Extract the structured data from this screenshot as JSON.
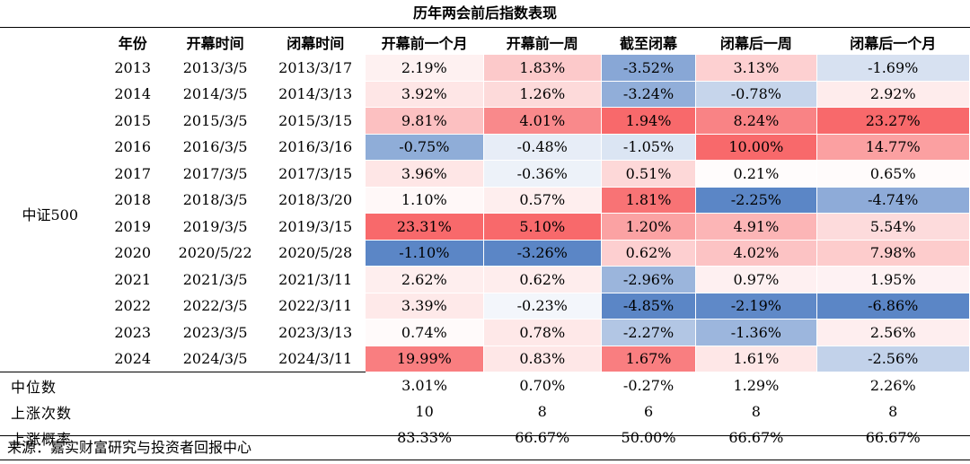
{
  "chart_data": {
    "type": "table",
    "title": "历年两会前后指数表现",
    "index_name": "中证500",
    "columns": [
      "年份",
      "开幕时间",
      "闭幕时间",
      "开幕前一个月",
      "开幕前一周",
      "截至闭幕",
      "闭幕后一周",
      "闭幕后一个月"
    ],
    "rows": [
      {
        "year": "2013",
        "open": "2013/3/5",
        "close": "2013/3/17",
        "values": [
          "2.19%",
          "1.83%",
          "-3.52%",
          "3.13%",
          "-1.69%"
        ]
      },
      {
        "year": "2014",
        "open": "2014/3/5",
        "close": "2014/3/13",
        "values": [
          "3.92%",
          "1.26%",
          "-3.24%",
          "-0.78%",
          "2.92%"
        ]
      },
      {
        "year": "2015",
        "open": "2015/3/5",
        "close": "2015/3/15",
        "values": [
          "9.81%",
          "4.01%",
          "1.94%",
          "8.24%",
          "23.27%"
        ]
      },
      {
        "year": "2016",
        "open": "2016/3/5",
        "close": "2016/3/16",
        "values": [
          "-0.75%",
          "-0.48%",
          "-1.05%",
          "10.00%",
          "14.77%"
        ]
      },
      {
        "year": "2017",
        "open": "2017/3/5",
        "close": "2017/3/15",
        "values": [
          "3.96%",
          "-0.36%",
          "0.51%",
          "0.21%",
          "0.65%"
        ]
      },
      {
        "year": "2018",
        "open": "2018/3/5",
        "close": "2018/3/20",
        "values": [
          "1.10%",
          "0.57%",
          "1.81%",
          "-2.25%",
          "-4.74%"
        ]
      },
      {
        "year": "2019",
        "open": "2019/3/5",
        "close": "2019/3/15",
        "values": [
          "23.31%",
          "5.10%",
          "1.20%",
          "4.91%",
          "5.54%"
        ]
      },
      {
        "year": "2020",
        "open": "2020/5/22",
        "close": "2020/5/28",
        "values": [
          "-1.10%",
          "-3.26%",
          "0.62%",
          "4.02%",
          "7.98%"
        ]
      },
      {
        "year": "2021",
        "open": "2021/3/5",
        "close": "2021/3/11",
        "values": [
          "2.62%",
          "0.62%",
          "-2.96%",
          "0.97%",
          "1.95%"
        ]
      },
      {
        "year": "2022",
        "open": "2022/3/5",
        "close": "2022/3/11",
        "values": [
          "3.39%",
          "-0.23%",
          "-4.85%",
          "-2.19%",
          "-6.86%"
        ]
      },
      {
        "year": "2023",
        "open": "2023/3/5",
        "close": "2023/3/13",
        "values": [
          "0.74%",
          "0.78%",
          "-2.27%",
          "-1.36%",
          "2.56%"
        ]
      },
      {
        "year": "2024",
        "open": "2024/3/5",
        "close": "2024/3/11",
        "values": [
          "19.99%",
          "0.83%",
          "1.67%",
          "1.61%",
          "-2.56%"
        ]
      }
    ],
    "summary": [
      {
        "label": "中位数",
        "values": [
          "3.01%",
          "0.70%",
          "-0.27%",
          "1.29%",
          "2.26%"
        ]
      },
      {
        "label": "上涨次数",
        "values": [
          "10",
          "8",
          "6",
          "8",
          "8"
        ]
      },
      {
        "label": "上涨概率",
        "values": [
          "83.33%",
          "66.67%",
          "50.00%",
          "66.67%",
          "66.67%"
        ]
      }
    ],
    "color_scale": {
      "negative": "#5b86c6",
      "neutral": "#ffffff",
      "positive": "#f8696b"
    }
  },
  "source": "来源：嘉实财富研究与投资者回报中心"
}
